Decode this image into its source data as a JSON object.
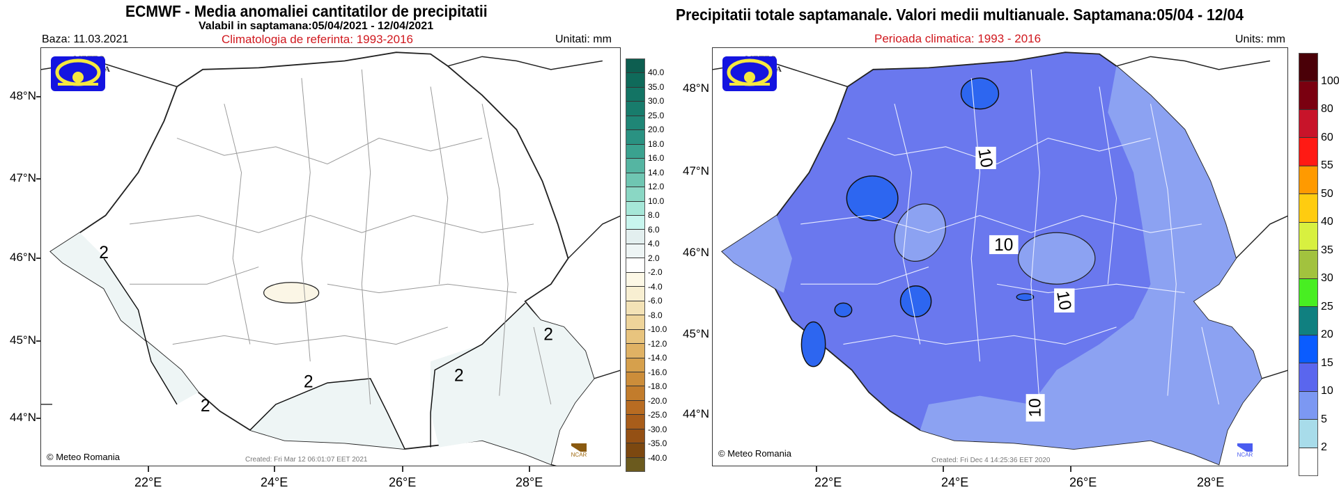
{
  "left_panel": {
    "title": "ECMWF  - Media anomaliei cantitatilor de precipitatii",
    "subtitle": "Valabil in saptamana:05/04/2021 - 12/04/2021",
    "baza": "Baza: 11.03.2021",
    "climatology": "Climatologia de referinta: 1993-2016",
    "units": "Unitati: mm",
    "logo_top": "METEO",
    "logo_bottom": "ROMANIA",
    "credit": "© Meteo Romania",
    "created": "Created: Fri Mar 12 06:01:07 EET 2021",
    "ncar": "NCAR",
    "lat_labels": [
      "48°N",
      "47°N",
      "46°N",
      "45°N",
      "44°N"
    ],
    "lon_labels": [
      "22°E",
      "24°E",
      "26°E",
      "28°E"
    ],
    "contour_labels": [
      "2",
      "2",
      "2",
      "2",
      "2"
    ],
    "colorbar": {
      "labels": [
        "40.0",
        "35.0",
        "30.0",
        "25.0",
        "20.0",
        "18.0",
        "16.0",
        "14.0",
        "12.0",
        "10.0",
        "8.0",
        "6.0",
        "4.0",
        "2.0",
        "-2.0",
        "-4.0",
        "-6.0",
        "-8.0",
        "-10.0",
        "-12.0",
        "-14.0",
        "-16.0",
        "-18.0",
        "-20.0",
        "-25.0",
        "-30.0",
        "-35.0",
        "-40.0"
      ],
      "colors": [
        "#0d5e50",
        "#0f6a5a",
        "#137464",
        "#187c6c",
        "#1f8676",
        "#2a9282",
        "#3aa28f",
        "#55b5a2",
        "#6fc6b2",
        "#8ad7c4",
        "#a6e7d8",
        "#c8f5ee",
        "#e3efef",
        "#eef5f5",
        "#ffffff",
        "#fdf8e6",
        "#f8efd2",
        "#f3e2b6",
        "#eed49a",
        "#e8c47e",
        "#e0b264",
        "#d6a04c",
        "#cc8d3a",
        "#c27c2c",
        "#b86c22",
        "#a85d1a",
        "#945014",
        "#7c4810",
        "#6b5a1e"
      ]
    }
  },
  "right_panel": {
    "title": "Precipitatii totale saptamanale. Valori medii multianuale. Saptamana:05/04 - 12/04",
    "climatology": "Perioada climatica: 1993 - 2016",
    "units": "Units: mm",
    "logo_top": "METEO",
    "logo_bottom": "ROMANIA",
    "credit": "© Meteo Romania",
    "created": "Created: Fri Dec  4 14:25:36 EET 2020",
    "ncar": "NCAR",
    "lat_labels": [
      "48°N",
      "47°N",
      "46°N",
      "45°N",
      "44°N"
    ],
    "lon_labels": [
      "22°E",
      "24°E",
      "26°E",
      "28°E"
    ],
    "contour_labels": [
      "10",
      "10",
      "10",
      "10"
    ],
    "colorbar": {
      "labels": [
        "100",
        "80",
        "60",
        "55",
        "50",
        "40",
        "35",
        "30",
        "25",
        "20",
        "15",
        "10",
        "5",
        "2"
      ],
      "colors": [
        "#4a0008",
        "#7a0010",
        "#c8142a",
        "#ff1a14",
        "#ff9a00",
        "#ffcc10",
        "#d8f040",
        "#a2c23e",
        "#48ee22",
        "#108080",
        "#0a5cff",
        "#5a66ee",
        "#7c98f2",
        "#a8dcea",
        "#ffffff"
      ]
    }
  }
}
